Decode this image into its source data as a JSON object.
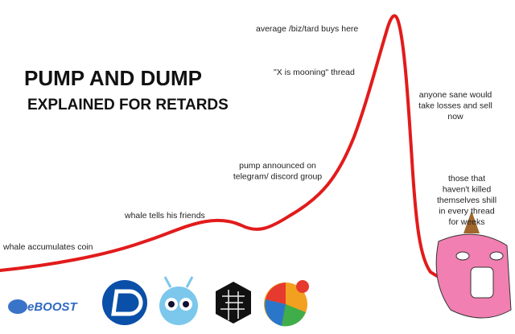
{
  "title": "PUMP AND DUMP",
  "subtitle": "EXPLAINED FOR RETARDS",
  "annotations": [
    {
      "lines": [
        "average /biz/tard buys here"
      ]
    },
    {
      "lines": [
        "\"X is mooning\" thread"
      ]
    },
    {
      "lines": [
        "anyone sane would",
        "take losses and sell",
        "now"
      ]
    },
    {
      "lines": [
        "pump announced on",
        "telegram/ discord group"
      ]
    },
    {
      "lines": [
        "whale tells his friends"
      ]
    },
    {
      "lines": [
        "whale accumulates coin"
      ]
    },
    {
      "lines": [
        "those that",
        "haven't killed",
        "themselves shill",
        "in every thread",
        "for weeks"
      ]
    }
  ],
  "logos": [
    "eBOOST"
  ]
}
